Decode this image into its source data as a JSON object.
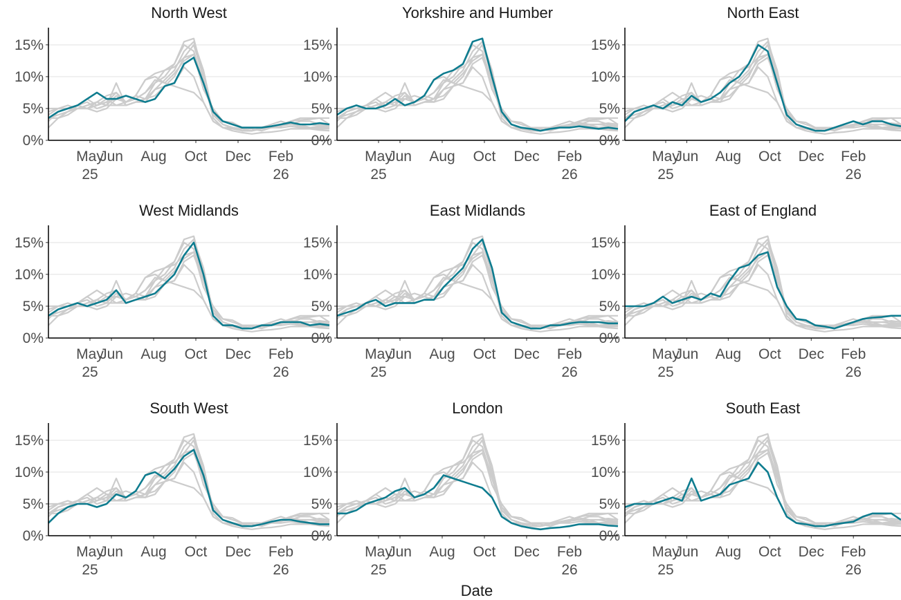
{
  "chart_data": {
    "type": "line",
    "x_label": "Date",
    "highlight_color": "#0e7c8f",
    "other_color": "#cccccc",
    "grid": true,
    "x": [
      -30,
      -16,
      -2,
      12,
      26,
      40,
      54,
      68,
      82,
      96,
      110,
      124,
      138,
      152,
      166,
      180,
      194,
      208,
      222,
      236,
      250,
      264,
      278,
      292,
      306,
      320,
      334,
      348,
      362,
      376
    ],
    "xlim": [
      -30,
      376
    ],
    "xticks": [
      {
        "value": 30,
        "label": "May\n25"
      },
      {
        "value": 61,
        "label": "Jun"
      },
      {
        "value": 122,
        "label": "Aug"
      },
      {
        "value": 183,
        "label": "Oct"
      },
      {
        "value": 244,
        "label": "Dec"
      },
      {
        "value": 306,
        "label": "Feb\n26"
      }
    ],
    "ylim": [
      0,
      17.7
    ],
    "yticks": [
      {
        "value": 0,
        "label": "0%"
      },
      {
        "value": 5,
        "label": "5%"
      },
      {
        "value": 10,
        "label": "10%"
      },
      {
        "value": 15,
        "label": "15%"
      }
    ],
    "series": [
      {
        "name": "North West",
        "values": [
          3.5,
          4.5,
          5,
          5.5,
          6.5,
          7.5,
          6.5,
          6.5,
          7,
          6.5,
          6,
          6.5,
          8.5,
          9,
          12,
          13,
          9,
          4.5,
          3,
          2.5,
          2,
          2,
          2,
          2.2,
          2.5,
          2.8,
          2.5,
          2.5,
          2.7,
          2.5
        ]
      },
      {
        "name": "Yorkshire and Humber",
        "values": [
          4,
          5,
          5.5,
          5,
          5,
          5.5,
          6.5,
          5.5,
          6,
          7,
          9.5,
          10.5,
          11,
          12,
          15.5,
          16,
          10,
          4.5,
          2.5,
          2,
          1.8,
          1.5,
          1.8,
          2,
          2,
          2.2,
          2,
          1.8,
          2,
          1.8
        ]
      },
      {
        "name": "North East",
        "values": [
          3,
          4.5,
          5,
          5.5,
          5,
          6,
          5.5,
          7,
          6,
          6.5,
          7.5,
          9,
          10,
          12,
          15,
          14,
          9,
          4,
          2.5,
          2,
          1.5,
          1.5,
          2,
          2.5,
          3,
          2.5,
          3,
          3,
          2.5,
          2.2
        ]
      },
      {
        "name": "West Midlands",
        "values": [
          3.5,
          4.5,
          5,
          5.5,
          5,
          5.5,
          6,
          7.5,
          5.5,
          6,
          6.5,
          7,
          8.5,
          10,
          13,
          15,
          10,
          3.5,
          2,
          2,
          1.5,
          1.5,
          2,
          2,
          2.5,
          2.5,
          2.5,
          2,
          2.2,
          2
        ]
      },
      {
        "name": "East Midlands",
        "values": [
          3.5,
          4,
          4.5,
          5.5,
          6,
          5,
          5.5,
          5.5,
          5.5,
          6,
          6,
          8,
          9.5,
          11,
          14,
          15.5,
          11,
          4,
          2.5,
          2,
          1.5,
          1.5,
          2,
          2,
          2.3,
          2.5,
          2.5,
          2.5,
          2.3,
          2.3
        ]
      },
      {
        "name": "East of England",
        "values": [
          5,
          5,
          5,
          5.5,
          6.5,
          5.5,
          6,
          6.5,
          6,
          7,
          6.5,
          9,
          11,
          11.5,
          13,
          13.5,
          8,
          5,
          3,
          2.8,
          2,
          1.8,
          1.5,
          2,
          2.5,
          3,
          3.2,
          3.3,
          3.5,
          3.5
        ]
      },
      {
        "name": "South West",
        "values": [
          2,
          3.5,
          4.5,
          5,
          5,
          4.5,
          5,
          6.5,
          6,
          7,
          9.5,
          10,
          9,
          10.5,
          12.5,
          13.5,
          9.5,
          4,
          2.5,
          2,
          1.5,
          1.5,
          1.8,
          2.2,
          2.5,
          2.5,
          2.2,
          2,
          1.8,
          1.8
        ]
      },
      {
        "name": "London",
        "values": [
          3.5,
          3.5,
          4,
          5,
          5.5,
          6,
          7,
          7.5,
          6,
          6.5,
          7.5,
          9.5,
          9,
          8.5,
          8,
          7.5,
          6,
          3,
          2,
          1.5,
          1.2,
          1,
          1.2,
          1.3,
          1.5,
          1.8,
          1.8,
          1.8,
          1.6,
          1.5
        ]
      },
      {
        "name": "South East",
        "values": [
          4.5,
          5,
          5,
          5,
          5.5,
          6,
          5.5,
          9,
          5.5,
          6,
          6.5,
          8,
          8.5,
          9,
          11.5,
          10,
          6,
          3,
          2,
          1.8,
          1.5,
          1.5,
          1.8,
          2,
          2.2,
          3,
          3.5,
          3.5,
          3.5,
          2.5
        ]
      }
    ]
  }
}
